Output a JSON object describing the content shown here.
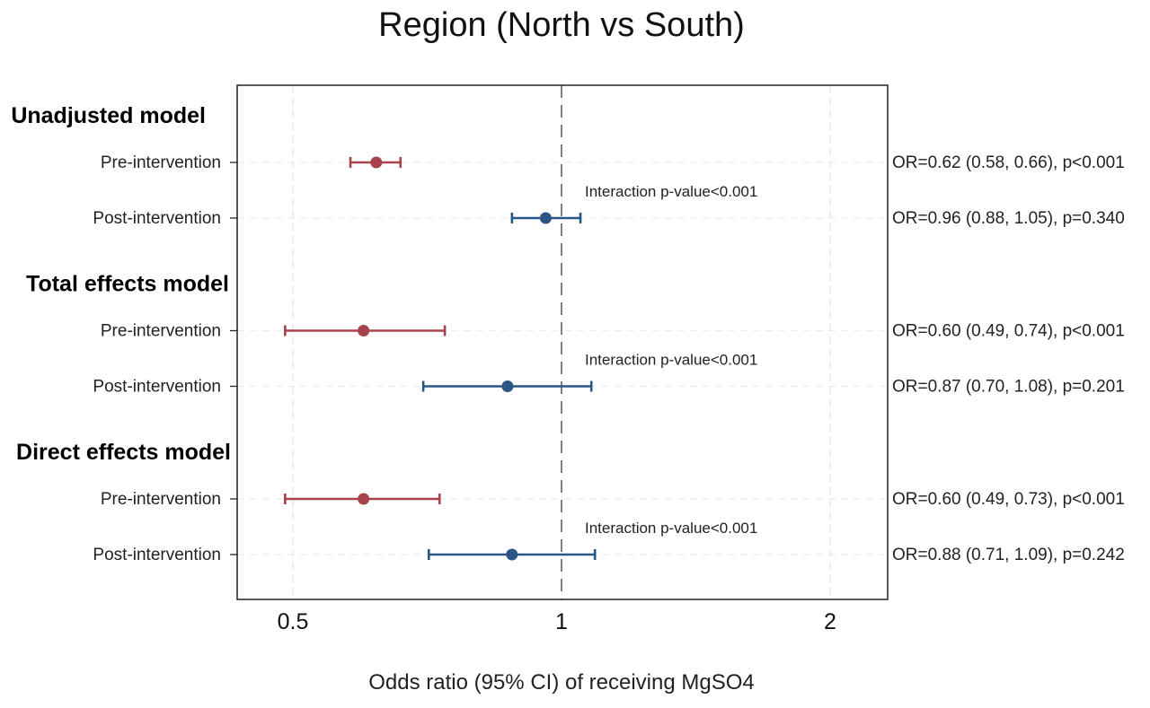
{
  "chart_data": {
    "type": "forest",
    "title": "Region (North vs South)",
    "xlabel": "Odds ratio (95% CI) of receiving MgSO4",
    "x_scale": "log",
    "xticks": [
      0.5,
      1,
      2
    ],
    "xtick_labels": [
      "0.5",
      "1",
      "2"
    ],
    "xlim": [
      0.45,
      2.3
    ],
    "reference_line": 1,
    "grid": true,
    "colors": {
      "pre": "#a8424b",
      "post": "#2b5585"
    },
    "groups": [
      {
        "title": "Unadjusted model",
        "interaction": "Interaction p-value<0.001",
        "rows": [
          {
            "label": "Pre-intervention",
            "series": "pre",
            "or": 0.62,
            "lo": 0.58,
            "hi": 0.66,
            "text": "OR=0.62 (0.58, 0.66), p<0.001"
          },
          {
            "label": "Post-intervention",
            "series": "post",
            "or": 0.96,
            "lo": 0.88,
            "hi": 1.05,
            "text": "OR=0.96 (0.88, 1.05), p=0.340"
          }
        ]
      },
      {
        "title": "Total effects model",
        "interaction": "Interaction p-value<0.001",
        "rows": [
          {
            "label": "Pre-intervention",
            "series": "pre",
            "or": 0.6,
            "lo": 0.49,
            "hi": 0.74,
            "text": "OR=0.60 (0.49, 0.74), p<0.001"
          },
          {
            "label": "Post-intervention",
            "series": "post",
            "or": 0.87,
            "lo": 0.7,
            "hi": 1.08,
            "text": "OR=0.87 (0.70, 1.08), p=0.201"
          }
        ]
      },
      {
        "title": "Direct effects model",
        "interaction": "Interaction p-value<0.001",
        "rows": [
          {
            "label": "Pre-intervention",
            "series": "pre",
            "or": 0.6,
            "lo": 0.49,
            "hi": 0.73,
            "text": "OR=0.60 (0.49, 0.73), p<0.001"
          },
          {
            "label": "Post-intervention",
            "series": "post",
            "or": 0.88,
            "lo": 0.71,
            "hi": 1.09,
            "text": "OR=0.88 (0.71, 1.09), p=0.242"
          }
        ]
      }
    ]
  }
}
